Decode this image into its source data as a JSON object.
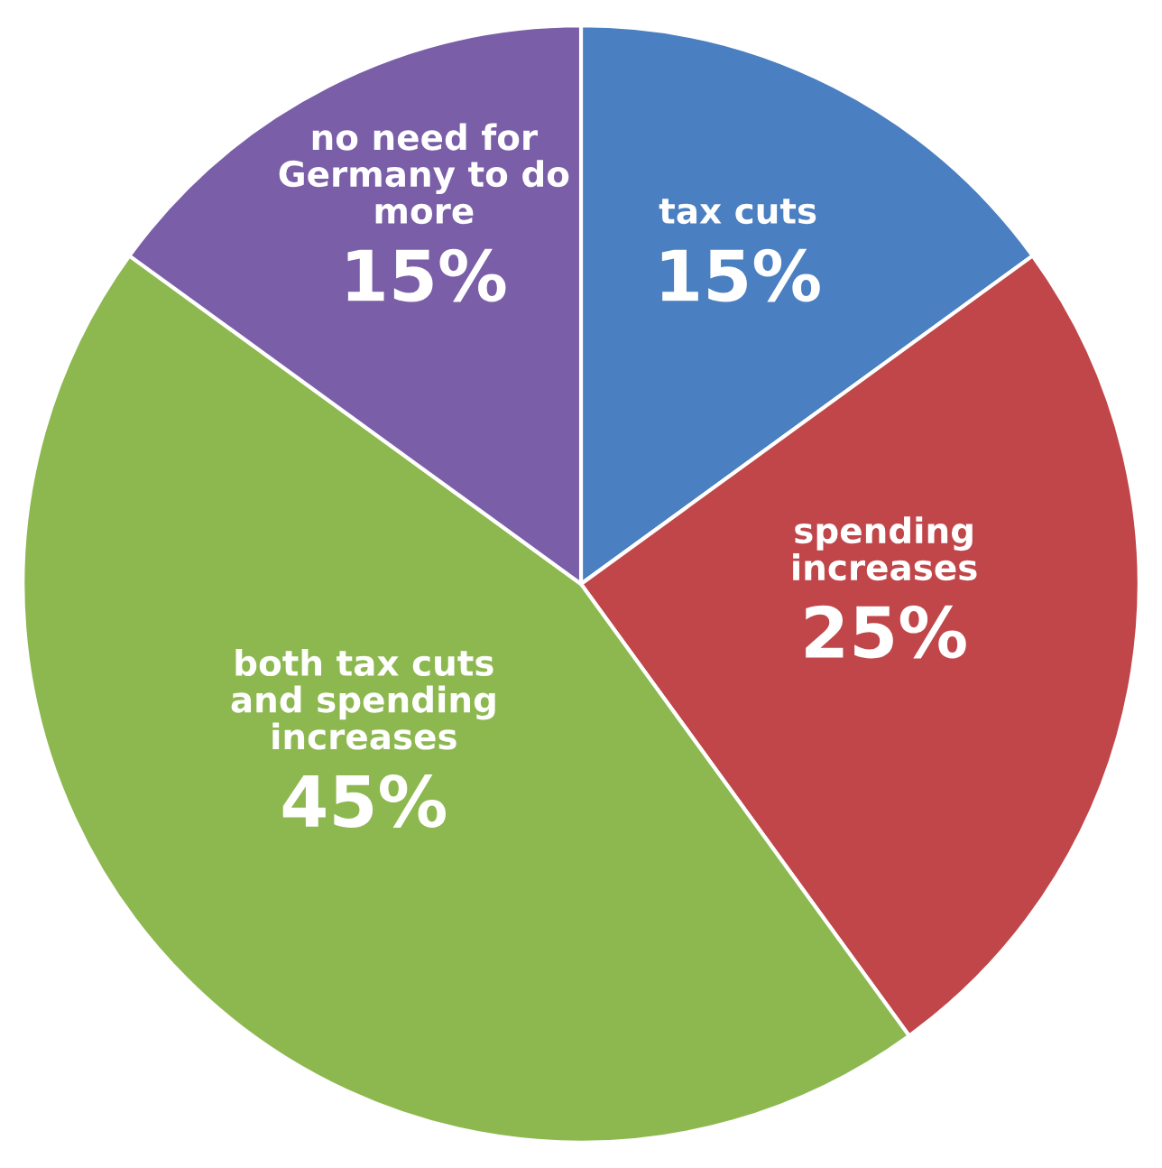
{
  "chart_data": {
    "type": "pie",
    "categories": [
      "tax cuts",
      "spending increases",
      "both tax cuts and spending increases",
      "no need for Germany to do more"
    ],
    "values": [
      15,
      25,
      45,
      15
    ],
    "colors": [
      "#4a7fc1",
      "#c0464a",
      "#8db850",
      "#7a5ea8"
    ],
    "value_labels": [
      "15%",
      "25%",
      "45%",
      "15%"
    ]
  }
}
